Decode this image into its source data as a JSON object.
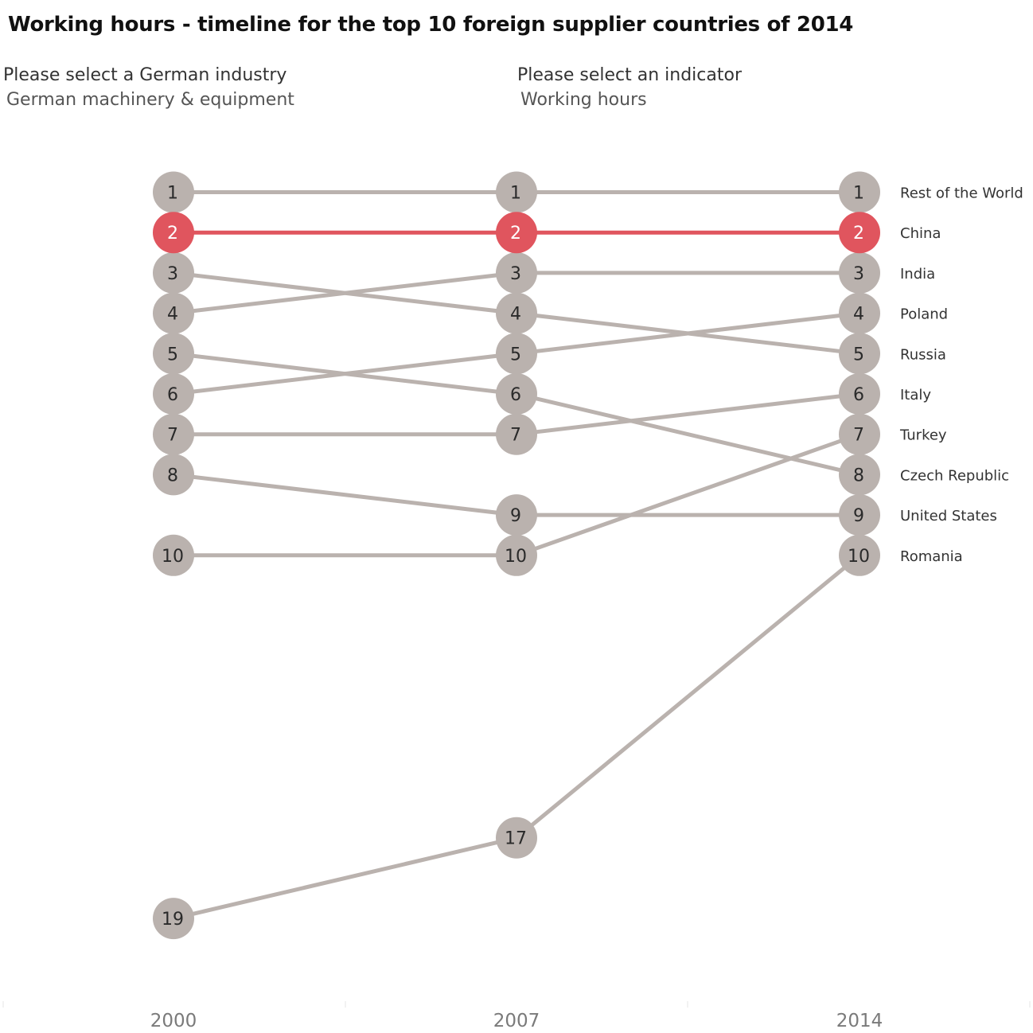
{
  "title": "Working hours - timeline for the top 10 foreign supplier countries of 2014",
  "filters": {
    "industry": {
      "label": "Please select a German industry",
      "value": "German machinery & equipment"
    },
    "indicator": {
      "label": "Please select an indicator",
      "value": "Working hours"
    }
  },
  "colors": {
    "highlight": "#e0555e",
    "default": "#bab2ae",
    "label_on_default": "#2a2a2a",
    "label_on_highlight": "#ffffff",
    "axis_text": "#7a7a7a"
  },
  "chart_data": {
    "type": "line",
    "x": [
      "2000",
      "2007",
      "2014"
    ],
    "y_meaning": "rank",
    "y_inverted": true,
    "series": [
      {
        "name": "Rest of the World",
        "values": [
          1,
          1,
          1
        ]
      },
      {
        "name": "China",
        "values": [
          2,
          2,
          2
        ],
        "highlight": true
      },
      {
        "name": "India",
        "values": [
          4,
          3,
          3
        ]
      },
      {
        "name": "Poland",
        "values": [
          6,
          5,
          4
        ]
      },
      {
        "name": "Russia",
        "values": [
          3,
          4,
          5
        ]
      },
      {
        "name": "Italy",
        "values": [
          7,
          7,
          6
        ]
      },
      {
        "name": "Turkey",
        "values": [
          10,
          10,
          7
        ]
      },
      {
        "name": "Czech Republic",
        "values": [
          5,
          6,
          8
        ]
      },
      {
        "name": "United States",
        "values": [
          8,
          9,
          9
        ]
      },
      {
        "name": "Romania",
        "values": [
          19,
          17,
          10
        ]
      }
    ]
  }
}
